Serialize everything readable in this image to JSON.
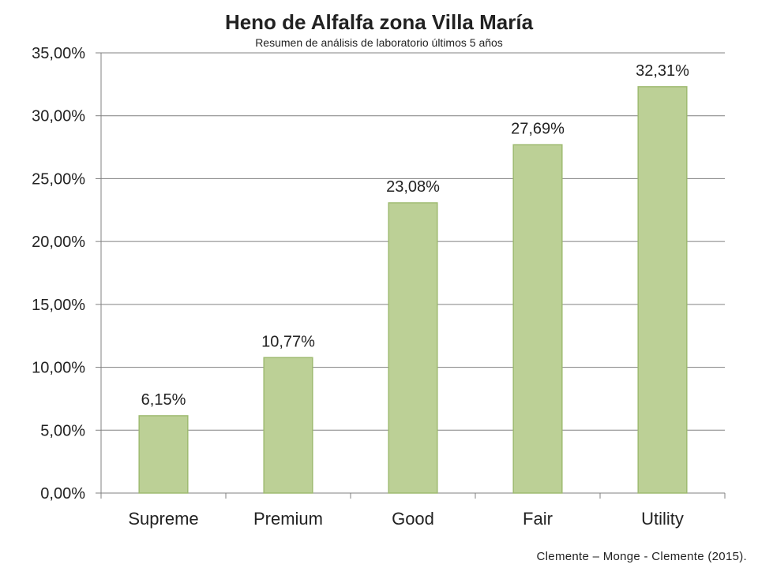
{
  "chart_data": {
    "type": "bar",
    "title": "Heno de Alfalfa zona Villa María",
    "subtitle": "Resumen de análisis de laboratorio últimos 5 años",
    "categories": [
      "Supreme",
      "Premium",
      "Good",
      "Fair",
      "Utility"
    ],
    "values": [
      6.15,
      10.77,
      23.08,
      27.69,
      32.31
    ],
    "data_labels": [
      "6,15%",
      "10,77%",
      "23,08%",
      "27,69%",
      "32,31%"
    ],
    "y_ticks": [
      0,
      5,
      10,
      15,
      20,
      25,
      30,
      35
    ],
    "y_tick_labels": [
      "0,00%",
      "5,00%",
      "10,00%",
      "15,00%",
      "20,00%",
      "25,00%",
      "30,00%",
      "35,00%"
    ],
    "ylim": [
      0,
      35
    ],
    "xlabel": "",
    "ylabel": "",
    "grid": true,
    "bar_color": "#bcd096",
    "bar_edge_color": "#9fbb71",
    "grid_color": "#808080"
  },
  "caption": "Clemente – Monge  - Clemente (2015)."
}
